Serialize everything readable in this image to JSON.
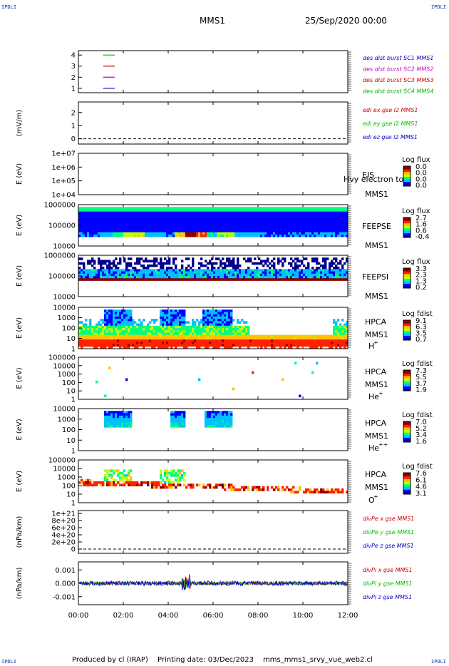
{
  "header": {
    "corner_tl": "IPDLI",
    "corner_tr": "IPDLI",
    "corner_bl": "IPDLI",
    "corner_br": "IPDLI",
    "spacecraft": "MMS1",
    "date": "25/Sep/2020 00:00"
  },
  "footer": {
    "produced": "Produced by cl (IRAP)",
    "printing": "Printing date: 03/Dec/2023",
    "file": "mms_mms1_srvy_vue_web2.cl"
  },
  "colors": {
    "blue": "#0000cc",
    "red": "#cc0000",
    "green": "#00bb00",
    "magenta": "#cc00cc",
    "colorbar": [
      "#000088",
      "#0000ff",
      "#00c0ff",
      "#00ff80",
      "#c0ff00",
      "#ffc000",
      "#ff2000",
      "#880000"
    ]
  },
  "chart_data": [
    {
      "id": "burst",
      "type": "line",
      "x_range_hours": [
        0,
        12
      ],
      "ylim": [
        0.6,
        4.4
      ],
      "yticks": [
        "1",
        "2",
        "3",
        "4"
      ],
      "ytick_values": [
        1,
        2,
        3,
        4
      ],
      "ylabel": "",
      "legend": [
        {
          "label": "des dist burst SC1 MMS1",
          "color": "#0000cc"
        },
        {
          "label": "des dist burst SC2 MMS2",
          "color": "#cc00cc"
        },
        {
          "label": "des dist burst SC3 MMS3",
          "color": "#cc0000"
        },
        {
          "label": "des dist burst SC4 MMS4",
          "color": "#00bb00"
        }
      ],
      "series": [
        {
          "name": "des dist burst SC1 MMS1",
          "level": 1,
          "color": "#0000cc",
          "x": [
            1.1,
            1.62
          ]
        },
        {
          "name": "des dist burst SC2 MMS2",
          "level": 2,
          "color": "#cc00cc",
          "x": [
            1.1,
            1.62
          ]
        },
        {
          "name": "des dist burst SC3 MMS3",
          "level": 3,
          "color": "#cc0000",
          "x": [
            1.1,
            1.62
          ]
        },
        {
          "name": "des dist burst SC4 MMS4",
          "level": 4,
          "color": "#00bb00",
          "x": [
            1.1,
            1.62
          ]
        }
      ]
    },
    {
      "id": "edi",
      "type": "line",
      "ylabel": "(mV/m)",
      "ylim": [
        -0.4,
        2.8
      ],
      "yticks": [
        "0",
        "1",
        "2"
      ],
      "ytick_values": [
        0,
        1,
        2
      ],
      "dashed_zero": true,
      "legend": [
        {
          "label": "edi ex gse l2 MMS1",
          "color": "#cc0000"
        },
        {
          "label": "edi ey gse l2 MMS1",
          "color": "#00bb00"
        },
        {
          "label": "edi ez gse l2 MMS1",
          "color": "#0000cc"
        }
      ]
    },
    {
      "id": "eis",
      "type": "heatmap",
      "ylabel": "E (eV)",
      "yticks": [
        "1e+07",
        "1e+06",
        "1e+05",
        "1e+04"
      ],
      "side_labels": [
        "EIS",
        "MMS1"
      ],
      "overlay_text": "Hvy electron to",
      "colorbar_title": "Log flux",
      "colorbar_ticks": [
        "0.0",
        "0.0",
        "0.0",
        "0.0"
      ]
    },
    {
      "id": "feeps_e",
      "type": "heatmap",
      "ylabel": "E (eV)",
      "yticks": [
        "1000000",
        "100000",
        "10000"
      ],
      "side_labels": [
        "FEEPSE",
        "MMS1"
      ],
      "colorbar_title": "Log flux",
      "colorbar_ticks": [
        "2.7",
        "1.6",
        "0.6",
        "-0.4"
      ],
      "x_hours": [
        0,
        1,
        1.5,
        2,
        3,
        3.9,
        4.3,
        4.8,
        5.2,
        5.7,
        6.2,
        7,
        8,
        9,
        10,
        11,
        12
      ],
      "levels": [
        0.2,
        0.25,
        0.4,
        0.55,
        0.25,
        0.2,
        0.6,
        0.9,
        0.7,
        0.35,
        0.45,
        0.25,
        0.2,
        0.2,
        0.2,
        0.2,
        0.2
      ]
    },
    {
      "id": "feeps_i",
      "type": "heatmap",
      "ylabel": "E (eV)",
      "yticks": [
        "1000000",
        "100000",
        "10000"
      ],
      "side_labels": [
        "FEEPSI",
        "MMS1"
      ],
      "colorbar_title": "Log flux",
      "colorbar_ticks": [
        "3.3",
        "2.3",
        "1.3",
        "0.2"
      ]
    },
    {
      "id": "hpca_h",
      "type": "heatmap",
      "ylabel": "E (eV)",
      "yticks": [
        "10000",
        "1000",
        "100",
        "10",
        "1"
      ],
      "side_labels": [
        "HPCA",
        "MMS1"
      ],
      "species": "H",
      "species_charge": "+",
      "colorbar_title": "Log fdist",
      "colorbar_ticks": [
        "9.1",
        "6.3",
        "3.5",
        "0.7"
      ]
    },
    {
      "id": "hpca_he1",
      "type": "heatmap",
      "ylabel": "E (eV)",
      "yticks": [
        "100000",
        "10000",
        "1000",
        "100",
        "10",
        "1"
      ],
      "side_labels": [
        "HPCA",
        "MMS1"
      ],
      "species": "He",
      "species_charge": "+",
      "colorbar_title": "Log fdist",
      "colorbar_ticks": [
        "7.3",
        "5.5",
        "3.7",
        "1.9"
      ]
    },
    {
      "id": "hpca_he2",
      "type": "heatmap",
      "ylabel": "E (eV)",
      "yticks": [
        "10000",
        "1000",
        "100",
        "10",
        "1"
      ],
      "side_labels": [
        "HPCA",
        "MMS1"
      ],
      "species": "He",
      "species_charge": "++",
      "colorbar_title": "Log fdist",
      "colorbar_ticks": [
        "7.0",
        "5.2",
        "3.4",
        "1.6"
      ]
    },
    {
      "id": "hpca_o",
      "type": "heatmap",
      "ylabel": "E (eV)",
      "yticks": [
        "100000",
        "10000",
        "1000",
        "100",
        "10",
        "1"
      ],
      "side_labels": [
        "HPCA",
        "MMS1"
      ],
      "species": "O",
      "species_charge": "+",
      "colorbar_title": "Log fdist",
      "colorbar_ticks": [
        "7.6",
        "6.1",
        "4.6",
        "3.1"
      ]
    },
    {
      "id": "divpe",
      "type": "line",
      "ylabel": "(nPa/km)",
      "ylim": [
        -1.2e+20,
        1.08e+21
      ],
      "yticks": [
        "1e+21",
        "8e+20",
        "6e+20",
        "4e+20",
        "2e+20",
        "0"
      ],
      "ytick_values": [
        1e+21,
        8e+20,
        6e+20,
        4e+20,
        2e+20,
        0
      ],
      "dashed_zero": true,
      "legend": [
        {
          "label": "divPe x gse MMS1",
          "color": "#cc0000"
        },
        {
          "label": "divPe y gse MMS1",
          "color": "#00bb00"
        },
        {
          "label": "divPe z gse MMS1",
          "color": "#0000cc"
        }
      ]
    },
    {
      "id": "divpi",
      "type": "line",
      "ylabel": "(nPa/km)",
      "ylim": [
        -0.0016,
        0.0016
      ],
      "yticks": [
        "0.001",
        "0.000",
        "-0.001"
      ],
      "ytick_values": [
        0.001,
        0,
        -0.001
      ],
      "legend": [
        {
          "label": "divPi x gse MMS1",
          "color": "#cc0000"
        },
        {
          "label": "divPi y gse MMS1",
          "color": "#00bb00"
        },
        {
          "label": "divPi z gse MMS1",
          "color": "#0000cc"
        }
      ]
    }
  ],
  "x_axis": {
    "ticks": [
      "00:00",
      "02:00",
      "04:00",
      "06:00",
      "08:00",
      "10:00",
      "12:00"
    ],
    "tick_hours": [
      0,
      2,
      4,
      6,
      8,
      10,
      12
    ]
  }
}
